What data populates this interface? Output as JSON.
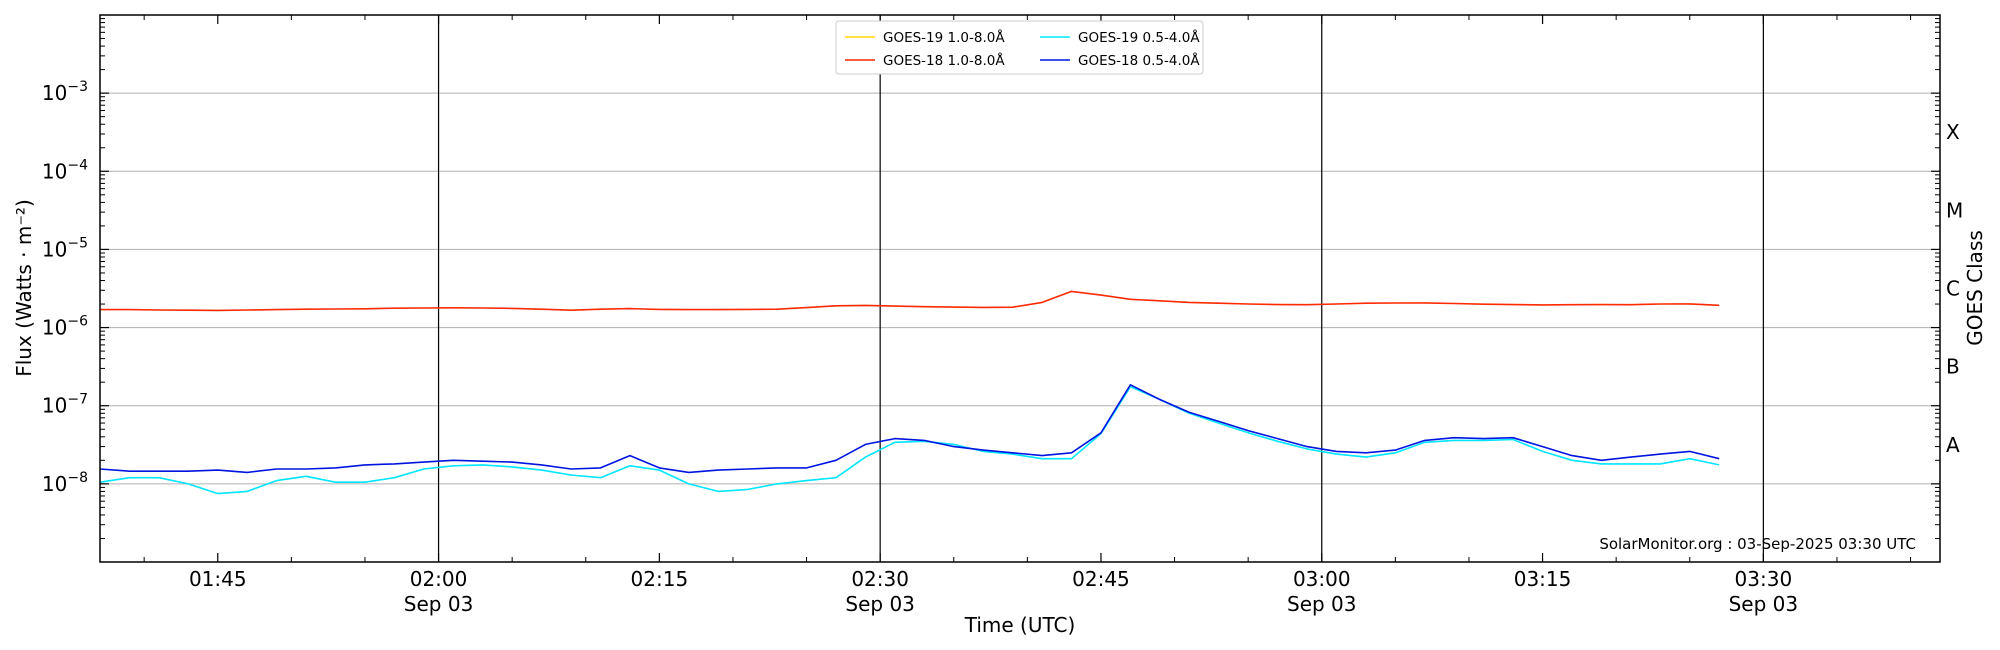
{
  "chart_data": {
    "type": "line",
    "xlabel": "Time (UTC)",
    "ylabel": "Flux (Watts · m⁻²)",
    "y2label": "GOES Class",
    "credit": "SolarMonitor.org : 03-Sep-2025 03:30 UTC",
    "y_scale": "log",
    "ylim": [
      "1e-9",
      "1e-2"
    ],
    "xlim": [
      "2025-09-03 01:37",
      "2025-09-03 03:42"
    ],
    "grid": "horizontal",
    "legend_position": "top-center",
    "x_ticks": [
      {
        "time": "01:45",
        "labels": [
          "01:45"
        ]
      },
      {
        "time": "02:00",
        "labels": [
          "02:00",
          "Sep 03"
        ],
        "vline": true
      },
      {
        "time": "02:15",
        "labels": [
          "02:15"
        ]
      },
      {
        "time": "02:30",
        "labels": [
          "02:30",
          "Sep 03"
        ],
        "vline": true
      },
      {
        "time": "02:45",
        "labels": [
          "02:45"
        ]
      },
      {
        "time": "03:00",
        "labels": [
          "03:00",
          "Sep 03"
        ],
        "vline": true
      },
      {
        "time": "03:15",
        "labels": [
          "03:15"
        ]
      },
      {
        "time": "03:30",
        "labels": [
          "03:30",
          "Sep 03"
        ],
        "vline": true
      }
    ],
    "y_ticks": [
      {
        "exp": -8,
        "base": "10",
        "sup": "−8"
      },
      {
        "exp": -7,
        "base": "10",
        "sup": "−7"
      },
      {
        "exp": -6,
        "base": "10",
        "sup": "−6"
      },
      {
        "exp": -5,
        "base": "10",
        "sup": "−5"
      },
      {
        "exp": -4,
        "base": "10",
        "sup": "−4"
      },
      {
        "exp": -3,
        "base": "10",
        "sup": "−3"
      }
    ],
    "goes_classes": [
      {
        "label": "A",
        "exp": -7.5
      },
      {
        "label": "B",
        "exp": -6.5
      },
      {
        "label": "C",
        "exp": -5.5
      },
      {
        "label": "M",
        "exp": -4.5
      },
      {
        "label": "X",
        "exp": -3.5
      }
    ],
    "x_times": [
      "01:37",
      "01:39",
      "01:41",
      "01:43",
      "01:45",
      "01:47",
      "01:49",
      "01:51",
      "01:53",
      "01:55",
      "01:57",
      "01:59",
      "02:01",
      "02:03",
      "02:05",
      "02:07",
      "02:09",
      "02:11",
      "02:13",
      "02:15",
      "02:17",
      "02:19",
      "02:21",
      "02:23",
      "02:25",
      "02:27",
      "02:29",
      "02:31",
      "02:33",
      "02:35",
      "02:37",
      "02:39",
      "02:41",
      "02:43",
      "02:45",
      "02:47",
      "02:49",
      "02:51",
      "02:53",
      "02:55",
      "02:57",
      "02:59",
      "03:01",
      "03:03",
      "03:05",
      "03:07",
      "03:09",
      "03:11",
      "03:13",
      "03:15",
      "03:17",
      "03:19",
      "03:21",
      "03:23",
      "03:25",
      "03:27"
    ],
    "series": [
      {
        "name": "GOES-19 1.0-8.0Å",
        "color": "#ffd700",
        "values": []
      },
      {
        "name": "GOES-18 1.0-8.0Å",
        "color": "#ff2a00",
        "values": [
          1.7e-06,
          1.7e-06,
          1.68e-06,
          1.67e-06,
          1.66e-06,
          1.68e-06,
          1.7e-06,
          1.72e-06,
          1.73e-06,
          1.74e-06,
          1.77e-06,
          1.78e-06,
          1.79e-06,
          1.78e-06,
          1.76e-06,
          1.72e-06,
          1.67e-06,
          1.72e-06,
          1.75e-06,
          1.71e-06,
          1.7e-06,
          1.7e-06,
          1.71e-06,
          1.72e-06,
          1.8e-06,
          1.9e-06,
          1.92e-06,
          1.88e-06,
          1.85e-06,
          1.83e-06,
          1.81e-06,
          1.82e-06,
          2.1e-06,
          2.9e-06,
          2.6e-06,
          2.3e-06,
          2.2e-06,
          2.1e-06,
          2.05e-06,
          2e-06,
          1.97e-06,
          1.96e-06,
          2e-06,
          2.05e-06,
          2.06e-06,
          2.07e-06,
          2.03e-06,
          1.99e-06,
          1.97e-06,
          1.95e-06,
          1.96e-06,
          1.97e-06,
          1.96e-06,
          2e-06,
          2.01e-06,
          1.93e-06
        ]
      },
      {
        "name": "GOES-19 0.5-4.0Å",
        "color": "#00e5ff",
        "values": [
          1.05e-08,
          1.2e-08,
          1.2e-08,
          1e-08,
          7.5e-09,
          8e-09,
          1.1e-08,
          1.25e-08,
          1.05e-08,
          1.05e-08,
          1.2e-08,
          1.55e-08,
          1.7e-08,
          1.75e-08,
          1.65e-08,
          1.5e-08,
          1.3e-08,
          1.2e-08,
          1.7e-08,
          1.5e-08,
          1e-08,
          8e-09,
          8.5e-09,
          1e-08,
          1.1e-08,
          1.2e-08,
          2.2e-08,
          3.4e-08,
          3.5e-08,
          3.2e-08,
          2.6e-08,
          2.4e-08,
          2.1e-08,
          2.1e-08,
          4.4e-08,
          1.75e-07,
          1.2e-07,
          8e-08,
          6e-08,
          4.5e-08,
          3.5e-08,
          2.8e-08,
          2.4e-08,
          2.2e-08,
          2.5e-08,
          3.4e-08,
          3.6e-08,
          3.6e-08,
          3.7e-08,
          2.6e-08,
          2e-08,
          1.8e-08,
          1.8e-08,
          1.8e-08,
          2.1e-08,
          1.75e-08
        ]
      },
      {
        "name": "GOES-18 0.5-4.0Å",
        "color": "#0015e0",
        "values": [
          1.55e-08,
          1.45e-08,
          1.45e-08,
          1.45e-08,
          1.5e-08,
          1.4e-08,
          1.55e-08,
          1.55e-08,
          1.6e-08,
          1.75e-08,
          1.8e-08,
          1.9e-08,
          2e-08,
          1.95e-08,
          1.9e-08,
          1.75e-08,
          1.55e-08,
          1.6e-08,
          2.3e-08,
          1.6e-08,
          1.4e-08,
          1.5e-08,
          1.55e-08,
          1.6e-08,
          1.6e-08,
          2e-08,
          3.2e-08,
          3.8e-08,
          3.6e-08,
          3e-08,
          2.7e-08,
          2.5e-08,
          2.3e-08,
          2.5e-08,
          4.5e-08,
          1.85e-07,
          1.2e-07,
          8.2e-08,
          6.3e-08,
          4.8e-08,
          3.8e-08,
          3e-08,
          2.6e-08,
          2.5e-08,
          2.7e-08,
          3.6e-08,
          3.9e-08,
          3.8e-08,
          3.9e-08,
          3e-08,
          2.3e-08,
          2e-08,
          2.2e-08,
          2.4e-08,
          2.6e-08,
          2.1e-08
        ]
      }
    ]
  }
}
